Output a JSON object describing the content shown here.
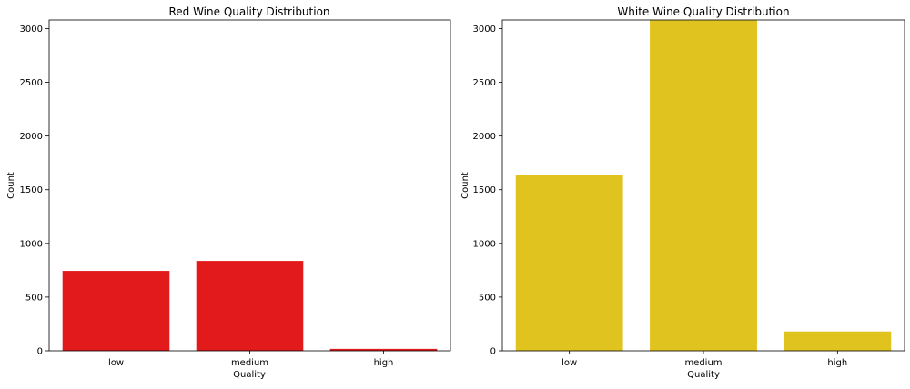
{
  "chart_data": [
    {
      "type": "bar",
      "title": "Red Wine Quality Distribution",
      "xlabel": "Quality",
      "ylabel": "Count",
      "categories": [
        "low",
        "medium",
        "high"
      ],
      "values": [
        744,
        837,
        18
      ],
      "ylim": [
        0,
        3080
      ],
      "yticks": [
        0,
        500,
        1000,
        1500,
        2000,
        2500,
        3000
      ],
      "color": "#e31a1c",
      "grid": false
    },
    {
      "type": "bar",
      "title": "White Wine Quality Distribution",
      "xlabel": "Quality",
      "ylabel": "Count",
      "categories": [
        "low",
        "medium",
        "high"
      ],
      "values": [
        1640,
        3078,
        180
      ],
      "ylim": [
        0,
        3080
      ],
      "yticks": [
        0,
        500,
        1000,
        1500,
        2000,
        2500,
        3000
      ],
      "color": "#e0c31e",
      "grid": false
    }
  ]
}
